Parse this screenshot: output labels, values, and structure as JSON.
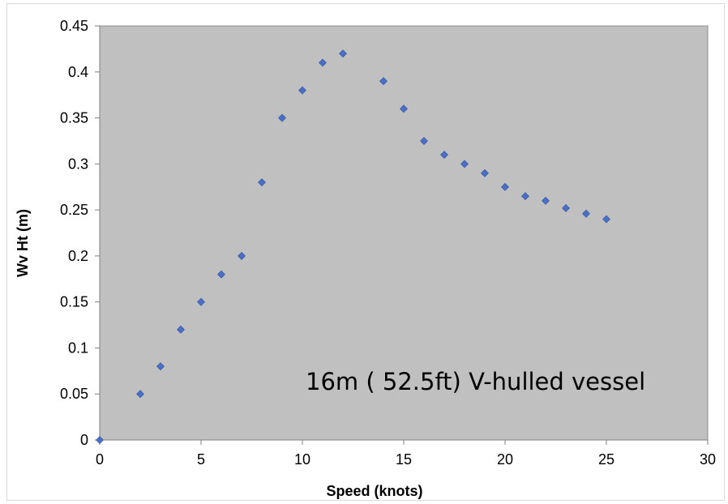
{
  "chart_data": {
    "type": "scatter",
    "title": "",
    "xlabel": "Speed (knots)",
    "ylabel": "Wv Ht (m)",
    "xlim": [
      0,
      30
    ],
    "ylim": [
      0,
      0.45
    ],
    "x_ticks": [
      "0",
      "5",
      "10",
      "15",
      "20",
      "25",
      "30"
    ],
    "y_ticks": [
      "0",
      "0.05",
      "0.1",
      "0.15",
      "0.2",
      "0.25",
      "0.3",
      "0.35",
      "0.4",
      "0.45"
    ],
    "grid": false,
    "legend": "none",
    "annotation": "16m ( 52.5ft) V-hulled vessel",
    "colors": {
      "plot_background": "#c0c0c0",
      "marker": "#4a6fc5",
      "marker_edge": "#2f4f9f"
    },
    "series": [
      {
        "marker": "diamond",
        "points": [
          {
            "x": 0,
            "y": 0
          },
          {
            "x": 2,
            "y": 0.05
          },
          {
            "x": 3,
            "y": 0.08
          },
          {
            "x": 4,
            "y": 0.12
          },
          {
            "x": 5,
            "y": 0.15
          },
          {
            "x": 6,
            "y": 0.18
          },
          {
            "x": 7,
            "y": 0.2
          },
          {
            "x": 8,
            "y": 0.28
          },
          {
            "x": 9,
            "y": 0.35
          },
          {
            "x": 10,
            "y": 0.38
          },
          {
            "x": 11,
            "y": 0.41
          },
          {
            "x": 12,
            "y": 0.42
          },
          {
            "x": 14,
            "y": 0.39
          },
          {
            "x": 15,
            "y": 0.36
          },
          {
            "x": 16,
            "y": 0.325
          },
          {
            "x": 17,
            "y": 0.31
          },
          {
            "x": 18,
            "y": 0.3
          },
          {
            "x": 19,
            "y": 0.29
          },
          {
            "x": 20,
            "y": 0.275
          },
          {
            "x": 21,
            "y": 0.265
          },
          {
            "x": 22,
            "y": 0.26
          },
          {
            "x": 23,
            "y": 0.252
          },
          {
            "x": 24,
            "y": 0.246
          },
          {
            "x": 25,
            "y": 0.24
          }
        ]
      }
    ]
  }
}
